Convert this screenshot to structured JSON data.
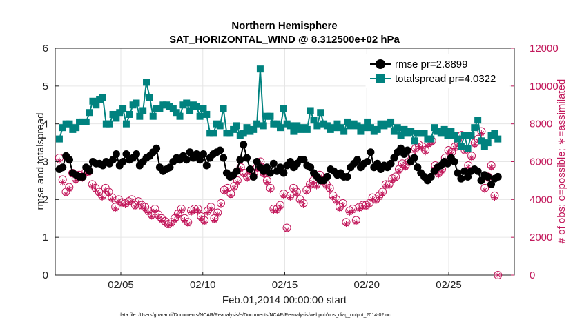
{
  "chart_data": {
    "type": "line",
    "title": "Northern Hemisphere",
    "subtitle": "SAT_HORIZONTAL_WIND @ 8.312500e+02 hPa",
    "xlabel": "Feb.01,2014 00:00:00 start",
    "ylabel": "rmse and totalspread",
    "ylabel_right": "# of obs: o=possible; ∗=assimilated",
    "footnote": "data file: /Users/gharamti/Documents/NCAR/Reanalysis/~/Documents/NCAR/Reanalysis/webpub/obs_diag_output_2014-02.nc",
    "x_tick_labels": [
      "02/05",
      "02/10",
      "02/15",
      "02/20",
      "02/25"
    ],
    "x_tick_values": [
      5,
      10,
      15,
      20,
      25
    ],
    "xlim": [
      1.0,
      29.0
    ],
    "ylim": [
      0,
      6
    ],
    "y_ticks": [
      0,
      1,
      2,
      3,
      4,
      5,
      6
    ],
    "ylim_right": [
      0,
      12000
    ],
    "y_ticks_right": [
      0,
      2000,
      4000,
      6000,
      8000,
      10000,
      12000
    ],
    "grid": true,
    "legend_position": "top-right",
    "colors": {
      "rmse": "#000000",
      "totalspread": "#00827f",
      "obs": "#c2185b"
    },
    "series": [
      {
        "name": "rmse pr=2.8899",
        "values": [
          2.8,
          2.85,
          3.15,
          3.05,
          2.7,
          2.65,
          2.6,
          2.6,
          2.85,
          2.75,
          3.0,
          2.95,
          2.95,
          2.9,
          3.0,
          2.95,
          3.05,
          3.2,
          2.9,
          3.0,
          3.2,
          3.05,
          3.1,
          3.2,
          2.9,
          3.0,
          3.1,
          3.15,
          3.25,
          3.35,
          2.85,
          2.75,
          2.8,
          2.85,
          3.0,
          3.1,
          3.05,
          3.15,
          3.05,
          3.25,
          3.1,
          3.2,
          3.05,
          3.2,
          2.9,
          3.1,
          3.2,
          3.25,
          3.3,
          3.1,
          2.7,
          2.6,
          2.65,
          2.75,
          3.05,
          3.45,
          3.1,
          2.8,
          2.6,
          3.0,
          2.85,
          2.75,
          2.85,
          2.7,
          2.95,
          2.75,
          2.85,
          2.7,
          2.9,
          3.0,
          2.85,
          2.95,
          3.05,
          3.05,
          2.9,
          2.85,
          2.7,
          2.6,
          2.5,
          2.5,
          2.6,
          2.8,
          2.75,
          2.65,
          2.7,
          2.6,
          2.6,
          2.85,
          2.95,
          3.05,
          2.85,
          2.95,
          3.0,
          3.25,
          2.85,
          2.95,
          2.8,
          2.9,
          2.85,
          2.95,
          3.1,
          3.25,
          3.35,
          3.2,
          3.3,
          3.0,
          3.1,
          2.85,
          2.7,
          2.6,
          2.5,
          2.6,
          2.75,
          2.85,
          2.9,
          3.0,
          2.95,
          3.1,
          3.0,
          2.7,
          2.55,
          2.75,
          2.6,
          2.75,
          2.8,
          2.75,
          2.5,
          2.65,
          2.6,
          2.4,
          2.55,
          2.6
        ]
      },
      {
        "name": "totalspread pr=4.0322",
        "values": [
          3.6,
          3.9,
          4.0,
          4.0,
          3.85,
          3.9,
          4.05,
          4.05,
          4.05,
          4.3,
          4.6,
          4.5,
          4.65,
          4.7,
          4.0,
          4.0,
          4.25,
          4.15,
          4.3,
          4.4,
          4.0,
          4.25,
          4.5,
          4.55,
          4.2,
          4.35,
          5.1,
          4.7,
          4.2,
          4.4,
          4.4,
          4.5,
          4.5,
          4.45,
          4.4,
          4.3,
          4.2,
          4.5,
          4.55,
          4.35,
          4.5,
          4.45,
          4.2,
          4.4,
          4.25,
          3.75,
          3.75,
          4.0,
          3.95,
          4.4,
          3.75,
          3.75,
          3.85,
          3.95,
          3.7,
          3.75,
          3.9,
          3.8,
          3.85,
          4.0,
          5.45,
          3.95,
          4.2,
          4.2,
          4.0,
          4.0,
          3.9,
          4.4,
          4.0,
          3.95,
          3.8,
          3.95,
          3.85,
          3.9,
          3.85,
          4.35,
          4.1,
          3.95,
          4.3,
          4.0,
          3.95,
          3.85,
          3.9,
          4.0,
          3.9,
          3.8,
          4.05,
          3.95,
          4.0,
          3.95,
          3.8,
          3.9,
          4.05,
          3.9,
          3.8,
          3.85,
          4.0,
          3.95,
          4.0,
          4.05,
          3.8,
          3.9,
          3.7,
          3.85,
          3.75,
          3.8,
          3.55,
          3.75,
          3.75,
          3.75,
          3.6,
          3.6,
          3.9,
          3.8,
          3.75,
          3.85,
          3.7,
          3.8,
          3.7,
          3.6,
          3.4,
          3.7,
          3.35,
          3.7,
          3.9,
          4.1,
          3.55,
          3.4,
          3.5,
          3.7,
          3.75,
          3.6
        ]
      },
      {
        "name": "obs possible",
        "axis": "right",
        "values": [
          6200,
          5050,
          4400,
          4650,
          5400,
          5100,
          5300,
          5200,
          5450,
          5500,
          4800,
          4600,
          4400,
          4200,
          4600,
          4400,
          4100,
          3600,
          4000,
          3850,
          3800,
          3900,
          4000,
          3700,
          3900,
          3700,
          3600,
          3400,
          3200,
          3500,
          3200,
          3000,
          2850,
          2700,
          2800,
          3000,
          3250,
          3500,
          3000,
          2800,
          3400,
          3500,
          3500,
          3100,
          2900,
          3400,
          3600,
          3000,
          3300,
          3800,
          4500,
          4600,
          4300,
          4700,
          5000,
          5700,
          5400,
          5200,
          5500,
          5400,
          5700,
          6000,
          5400,
          5000,
          4600,
          3500,
          3500,
          3700,
          4300,
          2500,
          4200,
          4600,
          4400,
          4000,
          3800,
          4500,
          4800,
          5000,
          4800,
          5300,
          5000,
          4800,
          4600,
          4200,
          4000,
          3600,
          3800,
          2800,
          3400,
          3500,
          2900,
          3600,
          3700,
          3700,
          3800,
          4100,
          4000,
          4200,
          4400,
          4800,
          4800,
          5100,
          5200,
          5600,
          5900,
          5800,
          6000,
          6300,
          6700,
          6900,
          6800,
          6600,
          7000,
          7100,
          5800,
          5400,
          5600,
          6200,
          6600,
          6500,
          6800,
          7000,
          7400,
          6600,
          5800,
          6300,
          7000,
          7200,
          7600,
          4600,
          5200,
          5800,
          4200,
          0
        ]
      },
      {
        "name": "obs assimilated",
        "axis": "right",
        "values": [
          6050,
          4900,
          4300,
          4550,
          5300,
          5000,
          5200,
          5100,
          5350,
          5400,
          4700,
          4500,
          4300,
          4100,
          4500,
          4300,
          4000,
          3500,
          3900,
          3750,
          3700,
          3800,
          3900,
          3600,
          3800,
          3600,
          3500,
          3300,
          3100,
          3400,
          3100,
          2900,
          2750,
          2600,
          2700,
          2900,
          3150,
          3400,
          2900,
          2700,
          3300,
          3400,
          3400,
          3000,
          2800,
          3300,
          3500,
          2900,
          3200,
          3700,
          4400,
          4500,
          4200,
          4600,
          4900,
          5600,
          5300,
          5100,
          5400,
          5300,
          5600,
          5900,
          5300,
          4900,
          4500,
          3400,
          3400,
          3600,
          4200,
          2400,
          4100,
          4500,
          4300,
          3900,
          3700,
          4400,
          4700,
          4900,
          4700,
          5200,
          4900,
          4700,
          4500,
          4100,
          3900,
          3500,
          3700,
          2700,
          3300,
          3400,
          2800,
          3500,
          3600,
          3600,
          3700,
          4000,
          3900,
          4100,
          4300,
          4700,
          4700,
          5000,
          5100,
          5500,
          5800,
          5700,
          5900,
          6200,
          6600,
          6800,
          6700,
          6500,
          6900,
          7000,
          5700,
          5300,
          5500,
          6100,
          6500,
          6400,
          6700,
          6900,
          7300,
          6500,
          5700,
          6200,
          6900,
          7100,
          7500,
          4500,
          5100,
          5700,
          4100,
          0
        ]
      }
    ]
  }
}
